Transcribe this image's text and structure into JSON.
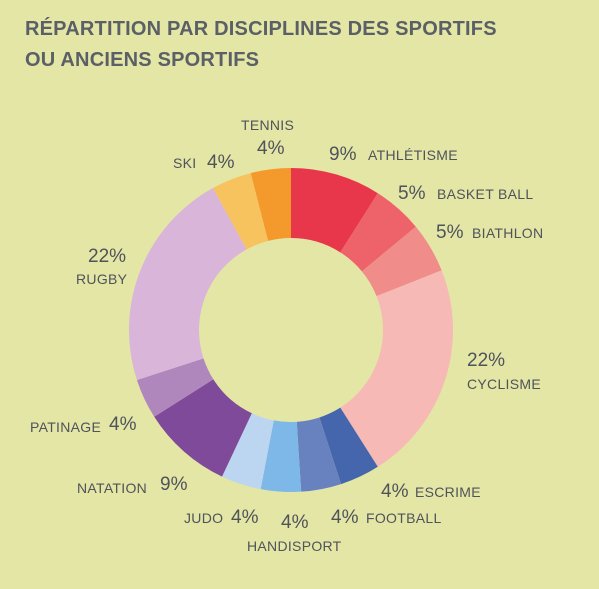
{
  "title_lines": [
    "RÉPARTITION PAR DISCIPLINES DES SPORTIFS",
    "OU ANCIENS SPORTIFS"
  ],
  "chart_data": {
    "type": "pie",
    "variant": "donut",
    "title": "RÉPARTITION PAR DISCIPLINES DES SPORTIFS OU ANCIENS SPORTIFS",
    "unit": "%",
    "slices": [
      {
        "label": "ATHLÉTISME",
        "value": 9,
        "display": "9%",
        "color": "#e8364b"
      },
      {
        "label": "BASKET BALL",
        "value": 5,
        "display": "5%",
        "color": "#ee636a"
      },
      {
        "label": "BIATHLON",
        "value": 5,
        "display": "5%",
        "color": "#f08c8a"
      },
      {
        "label": "CYCLISME",
        "value": 22,
        "display": "22%",
        "color": "#f6b9b5"
      },
      {
        "label": "ESCRIME",
        "value": 4,
        "display": "4%",
        "color": "#4565ad"
      },
      {
        "label": "FOOTBALL",
        "value": 4,
        "display": "4%",
        "color": "#6882bf"
      },
      {
        "label": "HANDISPORT",
        "value": 4,
        "display": "4%",
        "color": "#7eb8e8"
      },
      {
        "label": "JUDO",
        "value": 4,
        "display": "4%",
        "color": "#bcd6f1"
      },
      {
        "label": "NATATION",
        "value": 9,
        "display": "9%",
        "color": "#7f4a9a"
      },
      {
        "label": "PATINAGE",
        "value": 4,
        "display": "4%",
        "color": "#b087bd"
      },
      {
        "label": "RUGBY",
        "value": 22,
        "display": "22%",
        "color": "#d9b5d9"
      },
      {
        "label": "SKI",
        "value": 4,
        "display": "4%",
        "color": "#f7c35e"
      },
      {
        "label": "TENNIS",
        "value": 4,
        "display": "4%",
        "color": "#f49a2c"
      }
    ]
  }
}
